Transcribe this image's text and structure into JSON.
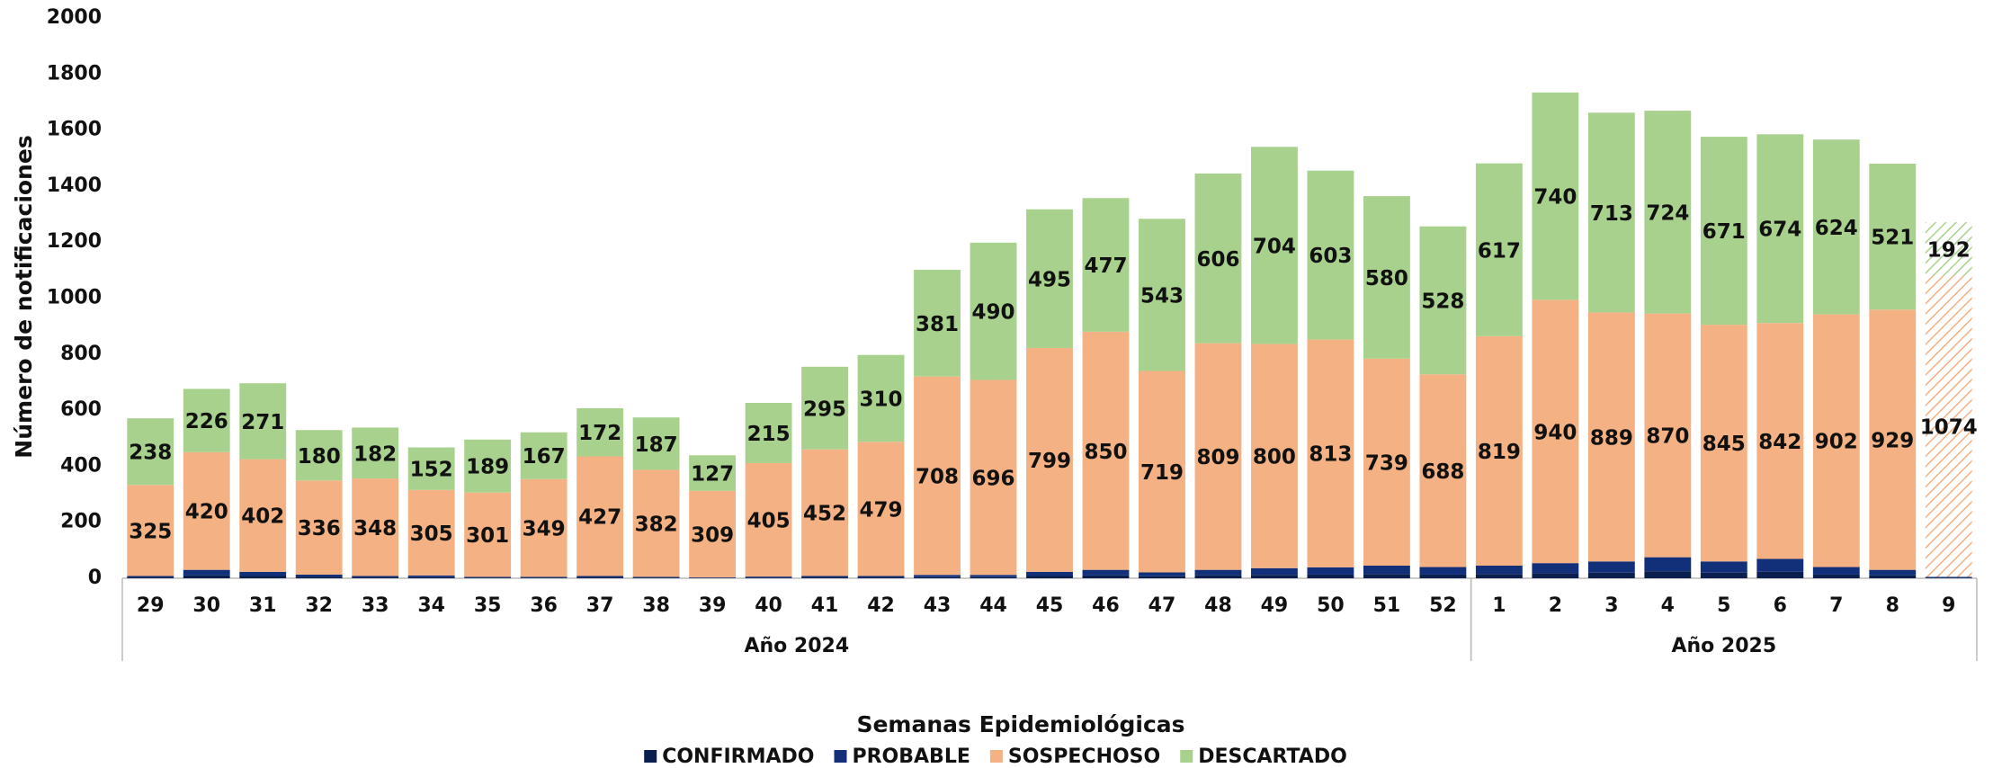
{
  "chart_data": {
    "type": "stacked_bar",
    "y_axis_label": "Número de notificaciones",
    "x_axis_label": "Semanas Epidemiológicas",
    "categories": [
      "29",
      "30",
      "31",
      "32",
      "33",
      "34",
      "35",
      "36",
      "37",
      "38",
      "39",
      "40",
      "41",
      "42",
      "43",
      "44",
      "45",
      "46",
      "47",
      "48",
      "49",
      "50",
      "51",
      "52",
      "1",
      "2",
      "3",
      "4",
      "5",
      "6",
      "7",
      "8",
      "9"
    ],
    "groups": [
      {
        "label": "Año 2024",
        "size": 24
      },
      {
        "label": "Año 2025",
        "size": 9
      }
    ],
    "hatched": [
      false,
      false,
      false,
      false,
      false,
      false,
      false,
      false,
      false,
      false,
      false,
      false,
      false,
      false,
      false,
      false,
      false,
      false,
      false,
      false,
      false,
      false,
      false,
      false,
      false,
      false,
      false,
      false,
      false,
      false,
      false,
      false,
      true
    ],
    "series": [
      {
        "name": "CONFIRMADO",
        "color": "#0a1f4d",
        "labels": false,
        "values": [
          3,
          10,
          8,
          5,
          3,
          4,
          2,
          2,
          3,
          2,
          1,
          2,
          3,
          3,
          4,
          4,
          8,
          10,
          7,
          10,
          12,
          13,
          15,
          13,
          15,
          18,
          20,
          25,
          20,
          23,
          13,
          10,
          2
        ]
      },
      {
        "name": "PROBABLE",
        "color": "#12307a",
        "labels": false,
        "values": [
          5,
          20,
          15,
          8,
          5,
          6,
          3,
          3,
          5,
          3,
          2,
          4,
          5,
          5,
          8,
          8,
          15,
          20,
          14,
          20,
          24,
          26,
          30,
          27,
          30,
          36,
          40,
          50,
          40,
          46,
          27,
          20,
          3
        ]
      },
      {
        "name": "SOSPECHOSO",
        "color": "#f4b183",
        "labels": true,
        "values": [
          325,
          420,
          402,
          336,
          348,
          305,
          301,
          349,
          427,
          382,
          309,
          405,
          452,
          479,
          708,
          696,
          799,
          850,
          719,
          809,
          800,
          813,
          739,
          688,
          819,
          940,
          889,
          870,
          845,
          842,
          902,
          929,
          1074
        ]
      },
      {
        "name": "DESCARTADO",
        "color": "#a9d18e",
        "labels": true,
        "values": [
          238,
          226,
          271,
          180,
          182,
          152,
          189,
          167,
          172,
          187,
          127,
          215,
          295,
          310,
          381,
          490,
          495,
          477,
          543,
          606,
          704,
          603,
          580,
          528,
          617,
          740,
          713,
          724,
          671,
          674,
          624,
          521,
          192
        ]
      }
    ],
    "ylim": [
      0,
      2000
    ],
    "yticks": [
      0,
      200,
      400,
      600,
      800,
      1000,
      1200,
      1400,
      1600,
      1800,
      2000
    ],
    "grid": false
  }
}
